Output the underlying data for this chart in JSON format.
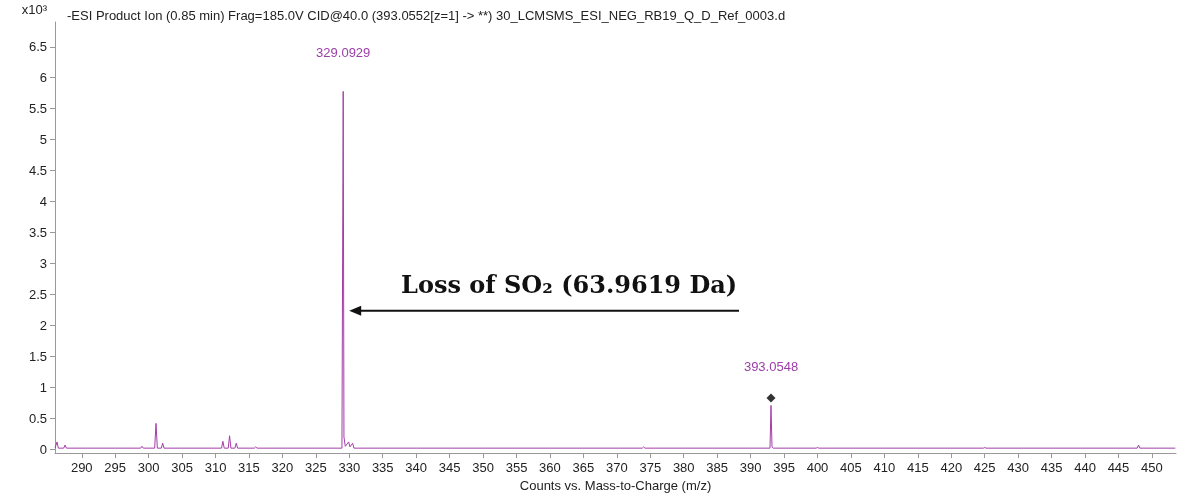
{
  "chart_data": {
    "type": "line",
    "title": "-ESI Product Ion (0.85 min) Frag=185.0V CID@40.0 (393.0552[z=1] -> **) 30_LCMSMS_ESI_NEG_RB19_Q_D_Ref_0003.d",
    "xlabel": "Counts vs. Mass-to-Charge (m/z)",
    "ylabel": "x10³",
    "xlim": [
      286,
      453.6
    ],
    "ylim": [
      -0.06,
      6.9
    ],
    "xticks": [
      290,
      295,
      300,
      305,
      310,
      315,
      320,
      325,
      330,
      335,
      340,
      345,
      350,
      355,
      360,
      365,
      370,
      375,
      380,
      385,
      390,
      395,
      400,
      405,
      410,
      415,
      420,
      425,
      430,
      435,
      440,
      445,
      450
    ],
    "yticks": [
      0,
      0.5,
      1,
      1.5,
      2,
      2.5,
      3,
      3.5,
      4,
      4.5,
      5,
      5.5,
      6,
      6.5
    ],
    "grid": false,
    "series": [
      {
        "color": "#a43da8",
        "marker": "none",
        "x": [
          286.0,
          286.3,
          286.5,
          287.3,
          287.5,
          287.7,
          295,
          298.8,
          299,
          299.2,
          300.9,
          301.1,
          301.3,
          301.9,
          302.1,
          302.3,
          310.9,
          311.1,
          311.3,
          311.9,
          312.1,
          312.3,
          312.9,
          313.1,
          313.3,
          315.8,
          316,
          316.2,
          328.9,
          329.09,
          329.2,
          329.4,
          329.9,
          330.1,
          330.5,
          330.7,
          340,
          360,
          373.8,
          374,
          374.2,
          392.9,
          393.05,
          393.2,
          393.4,
          399.8,
          400,
          400.2,
          424.8,
          425,
          425.2,
          447.8,
          448,
          448.2,
          453.5
        ],
        "values": [
          0.02,
          0.12,
          0.02,
          0.02,
          0.07,
          0.02,
          0.02,
          0.02,
          0.05,
          0.02,
          0.02,
          0.42,
          0.02,
          0.02,
          0.1,
          0.02,
          0.02,
          0.13,
          0.02,
          0.02,
          0.22,
          0.02,
          0.02,
          0.1,
          0.02,
          0.02,
          0.04,
          0.02,
          0.02,
          5.78,
          0.2,
          0.05,
          0.12,
          0.04,
          0.1,
          0.02,
          0.02,
          0.02,
          0.02,
          0.04,
          0.02,
          0.02,
          0.71,
          0.04,
          0.02,
          0.02,
          0.03,
          0.02,
          0.02,
          0.03,
          0.02,
          0.02,
          0.07,
          0.02,
          0.02
        ]
      },
      {
        "type": "scatter",
        "color": "#000000",
        "marker": "diamond",
        "x": [
          393.05
        ],
        "values": [
          0.83
        ]
      }
    ],
    "annotations": [
      {
        "text": "329.0929",
        "x": 329.09,
        "y": 5.78
      },
      {
        "text": "393.0548",
        "x": 393.05,
        "y": 0.71
      },
      "Loss of SO₂ (63.9619 Da)"
    ]
  }
}
